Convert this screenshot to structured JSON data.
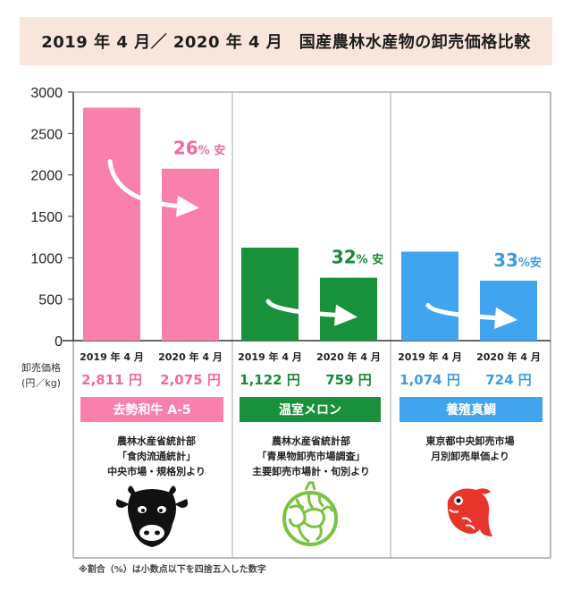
{
  "title": "2019 年 4 月／ 2020 年 4 月　国産農林水産物の卸売価格比較",
  "y_axis_label": [
    "卸売価格",
    "(円／kg)"
  ],
  "footnote": "※割合（%）は小数点以下を四捨五入した数字",
  "colors": {
    "pink": "#f97fac",
    "pink_text": "#f3699e",
    "green": "#19913c",
    "green_text": "#188a38",
    "blue": "#41a4ee",
    "blue_text": "#3d9ce3",
    "title_bg": "#f8e6dc"
  },
  "products": [
    {
      "name": "去勢和牛 A-5",
      "color_key": "pink",
      "prices_text": [
        "2,811 円",
        "2,075 円"
      ],
      "discount_number": "26",
      "discount_suffix": "% 安",
      "source": [
        "農林水産省統計部",
        "「食肉流通統計」",
        "中央市場・規格別より"
      ],
      "icon": "cow-icon"
    },
    {
      "name": "温室メロン",
      "color_key": "green",
      "prices_text": [
        "1,122 円",
        "759 円"
      ],
      "discount_number": "32",
      "discount_suffix": "% 安",
      "source": [
        "農林水産省統計部",
        "「青果物卸売市場調査」",
        "主要卸売市場計・旬別より"
      ],
      "icon": "melon-icon"
    },
    {
      "name": "養殖真鯛",
      "color_key": "blue",
      "prices_text": [
        "1,074 円",
        "724 円"
      ],
      "discount_number": "33",
      "discount_suffix": "%安",
      "source": [
        "東京都中央卸売市場",
        "月別卸売単価より"
      ],
      "icon": "sea-bream-icon"
    }
  ],
  "chart_data": {
    "type": "bar",
    "categories": [
      "去勢和牛 A-5",
      "温室メロン",
      "養殖真鯛"
    ],
    "x_labels": [
      "2019 年 4 月",
      "2020 年 4 月"
    ],
    "series": [
      {
        "name": "2019 年 4 月",
        "values": [
          2811,
          1122,
          1074
        ]
      },
      {
        "name": "2020 年 4 月",
        "values": [
          2075,
          759,
          724
        ]
      }
    ],
    "yticks": [
      0,
      500,
      1000,
      1500,
      2000,
      2500,
      3000
    ],
    "ylim": [
      0,
      3000
    ],
    "grid": false,
    "legend": "none"
  }
}
